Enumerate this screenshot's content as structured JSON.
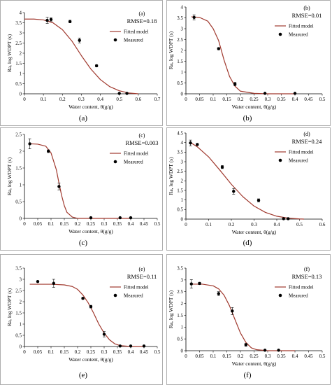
{
  "figure": {
    "colors": {
      "model": "#a0392e",
      "marker": "#000000",
      "axis": "#000000",
      "frame": "#9a9a9a"
    }
  },
  "chart_data": [
    {
      "type": "scatter",
      "panel_label": "(a)",
      "caption": "(a)",
      "rmse": "RMSE=0.18",
      "xlabel": "Water content, θ(g/g)",
      "ylabel": "Ra, log WDPT (s)",
      "xlim": [
        0,
        0.7
      ],
      "ylim": [
        0,
        4
      ],
      "xticks": [
        "0",
        "0.1",
        "0.2",
        "0.3",
        "0.4",
        "0.5",
        "0.6",
        "0.7"
      ],
      "yticks": [
        "0",
        "0.5",
        "1",
        "1.5",
        "2",
        "2.5",
        "3",
        "3.5",
        "4"
      ],
      "legend": [
        "Fitted model",
        "Measured"
      ],
      "legend_position": "right",
      "series": [
        {
          "name": "Fitted model",
          "kind": "line",
          "x": [
            0,
            0.05,
            0.1,
            0.15,
            0.2,
            0.25,
            0.3,
            0.35,
            0.4,
            0.45,
            0.5,
            0.55,
            0.6
          ],
          "y": [
            3.68,
            3.68,
            3.64,
            3.5,
            3.16,
            2.6,
            1.88,
            1.22,
            0.7,
            0.35,
            0.15,
            0.04,
            0
          ]
        },
        {
          "name": "Measured",
          "kind": "points",
          "x": [
            0.12,
            0.14,
            0.24,
            0.29,
            0.38,
            0.5,
            0.54
          ],
          "y": [
            3.62,
            3.66,
            3.56,
            2.63,
            1.38,
            0.02,
            0.02
          ],
          "err": [
            0.15,
            0.08,
            0.06,
            0.12,
            0.05,
            0,
            0
          ]
        }
      ]
    },
    {
      "type": "scatter",
      "panel_label": "(b)",
      "caption": "(b)",
      "rmse": "RMSE=0.01",
      "xlabel": "Water content, θ(g/g)",
      "ylabel": "Ra, log WDPT (s)",
      "xlim": [
        0,
        0.5
      ],
      "ylim": [
        0,
        4
      ],
      "xticks": [
        "0",
        "0.05",
        "0.1",
        "0.15",
        "0.2",
        "0.25",
        "0.3",
        "0.35",
        "0.4",
        "0.45",
        "0.5"
      ],
      "yticks": [
        "0",
        "0.5",
        "1",
        "1.5",
        "2",
        "2.5",
        "3",
        "3.5",
        "4"
      ],
      "legend": [
        "Fitted model",
        "Measured"
      ],
      "legend_position": "right",
      "series": [
        {
          "name": "Fitted model",
          "kind": "line",
          "x": [
            0.02,
            0.05,
            0.08,
            0.1,
            0.12,
            0.14,
            0.16,
            0.18,
            0.2,
            0.25,
            0.3,
            0.35,
            0.4
          ],
          "y": [
            3.55,
            3.52,
            3.35,
            3.0,
            2.45,
            1.55,
            0.8,
            0.35,
            0.12,
            0.02,
            0,
            0,
            0
          ]
        },
        {
          "name": "Measured",
          "kind": "points",
          "x": [
            0.03,
            0.12,
            0.18,
            0.29,
            0.4
          ],
          "y": [
            3.52,
            2.08,
            0.45,
            0.02,
            0.02
          ],
          "err": [
            0.12,
            0.05,
            0.08,
            0,
            0
          ]
        }
      ]
    },
    {
      "type": "scatter",
      "panel_label": "(c)",
      "caption": "(c)",
      "rmse": "RMSE=0.003",
      "xlabel": "Water content, θ(g/g)",
      "ylabel": "Ra, log WDPT (s)",
      "xlim": [
        0,
        0.5
      ],
      "ylim": [
        0,
        2.5
      ],
      "xticks": [
        "0",
        "0.05",
        "0.1",
        "0.15",
        "0.2",
        "0.25",
        "0.3",
        "0.35",
        "0.4",
        "0.45",
        "0.5"
      ],
      "yticks": [
        "0",
        "0.5",
        "1",
        "1.5",
        "2",
        "2.5"
      ],
      "legend": [
        "Fitted model",
        "Measured"
      ],
      "legend_position": "right",
      "series": [
        {
          "name": "Fitted model",
          "kind": "line",
          "x": [
            0.02,
            0.05,
            0.08,
            0.1,
            0.12,
            0.13,
            0.14,
            0.15,
            0.16,
            0.18,
            0.2,
            0.25,
            0.3,
            0.4
          ],
          "y": [
            2.22,
            2.21,
            2.15,
            1.95,
            1.45,
            1.05,
            0.68,
            0.38,
            0.18,
            0.04,
            0,
            0,
            0,
            0
          ]
        },
        {
          "name": "Measured",
          "kind": "points",
          "x": [
            0.02,
            0.09,
            0.13,
            0.25,
            0.36,
            0.4
          ],
          "y": [
            2.22,
            2.0,
            0.95,
            0.02,
            0.02,
            0.02
          ],
          "err": [
            0.15,
            0.04,
            0.1,
            0,
            0,
            0
          ]
        }
      ]
    },
    {
      "type": "scatter",
      "panel_label": "(d)",
      "caption": "(d)",
      "rmse": "RMSE=0.24",
      "xlabel": "Water content, θ(g/g)",
      "ylabel": "Ra, log WDPT (s)",
      "xlim": [
        0,
        0.6
      ],
      "ylim": [
        0,
        4.5
      ],
      "xticks": [
        "0",
        "0.1",
        "0.2",
        "0.3",
        "0.4",
        "0.5",
        "0.6"
      ],
      "yticks": [
        "0",
        "0.5",
        "1",
        "1.5",
        "2",
        "2.5",
        "3",
        "3.5",
        "4",
        "4.5"
      ],
      "legend": [
        "Fitted model",
        "Measured"
      ],
      "legend_position": "right",
      "series": [
        {
          "name": "Fitted model",
          "kind": "line",
          "x": [
            0.02,
            0.05,
            0.1,
            0.15,
            0.2,
            0.25,
            0.3,
            0.35,
            0.4,
            0.45,
            0.5,
            0.52
          ],
          "y": [
            4.0,
            3.78,
            3.25,
            2.55,
            1.82,
            1.18,
            0.68,
            0.35,
            0.15,
            0.05,
            0.01,
            0
          ]
        },
        {
          "name": "Measured",
          "kind": "points",
          "x": [
            0.02,
            0.05,
            0.16,
            0.21,
            0.32,
            0.43,
            0.45
          ],
          "y": [
            3.98,
            3.9,
            2.72,
            1.45,
            0.98,
            0.02,
            0.02
          ],
          "err": [
            0.15,
            0.05,
            0.08,
            0.15,
            0.08,
            0,
            0
          ]
        }
      ]
    },
    {
      "type": "scatter",
      "panel_label": "(e)",
      "caption": "(e)",
      "rmse": "RMSE=0.11",
      "xlabel": "Water content, θ(g/g)",
      "ylabel": "Ra, log WDPT (s)",
      "xlim": [
        0,
        0.5
      ],
      "ylim": [
        0,
        3.5
      ],
      "xticks": [
        "0",
        "0.05",
        "0.1",
        "0.15",
        "0.2",
        "0.25",
        "0.3",
        "0.35",
        "0.4",
        "0.45",
        "0.5"
      ],
      "yticks": [
        "0",
        "0.5",
        "1",
        "1.5",
        "2",
        "2.5",
        "3",
        "3.5"
      ],
      "legend": [
        "Fitted model",
        "Measured"
      ],
      "legend_position": "right",
      "series": [
        {
          "name": "Fitted model",
          "kind": "line",
          "x": [
            0.02,
            0.1,
            0.15,
            0.18,
            0.2,
            0.22,
            0.24,
            0.26,
            0.28,
            0.3,
            0.32,
            0.34,
            0.36,
            0.4,
            0.45
          ],
          "y": [
            2.78,
            2.78,
            2.75,
            2.68,
            2.55,
            2.3,
            1.95,
            1.5,
            1.0,
            0.6,
            0.3,
            0.12,
            0.04,
            0,
            0
          ]
        },
        {
          "name": "Measured",
          "kind": "points",
          "x": [
            0.05,
            0.11,
            0.22,
            0.25,
            0.3,
            0.36,
            0.4,
            0.45
          ],
          "y": [
            2.9,
            2.82,
            2.15,
            1.78,
            0.55,
            0.02,
            0.02,
            0.02
          ],
          "err": [
            0,
            0.18,
            0.04,
            0.06,
            0.12,
            0,
            0,
            0
          ]
        }
      ]
    },
    {
      "type": "scatter",
      "panel_label": "(f)",
      "caption": "(f)",
      "rmse": "RMSE=0.13",
      "xlabel": "Water content, θ(g/g)",
      "ylabel": "Ra, log WDPT (s)",
      "xlim": [
        0,
        0.5
      ],
      "ylim": [
        0,
        3.5
      ],
      "xticks": [
        "0",
        "0.05",
        "0.1",
        "0.15",
        "0.2",
        "0.25",
        "0.3",
        "0.35",
        "0.4",
        "0.45",
        "0.5"
      ],
      "yticks": [
        "0",
        "0.5",
        "1",
        "1.5",
        "2",
        "2.5",
        "3",
        "3.5"
      ],
      "legend": [
        "Fitted model",
        "Measured"
      ],
      "legend_position": "right",
      "series": [
        {
          "name": "Fitted model",
          "kind": "line",
          "x": [
            0.02,
            0.06,
            0.1,
            0.12,
            0.14,
            0.16,
            0.18,
            0.2,
            0.22,
            0.24,
            0.26,
            0.3,
            0.34,
            0.4
          ],
          "y": [
            2.82,
            2.82,
            2.75,
            2.62,
            2.35,
            1.9,
            1.32,
            0.75,
            0.35,
            0.12,
            0.04,
            0,
            0,
            0
          ]
        },
        {
          "name": "Measured",
          "kind": "points",
          "x": [
            0.02,
            0.05,
            0.12,
            0.17,
            0.22,
            0.29,
            0.34
          ],
          "y": [
            2.83,
            2.85,
            2.42,
            1.68,
            0.25,
            0.02,
            0.02
          ],
          "err": [
            0.18,
            0.05,
            0.08,
            0.15,
            0.06,
            0,
            0
          ]
        }
      ]
    }
  ]
}
